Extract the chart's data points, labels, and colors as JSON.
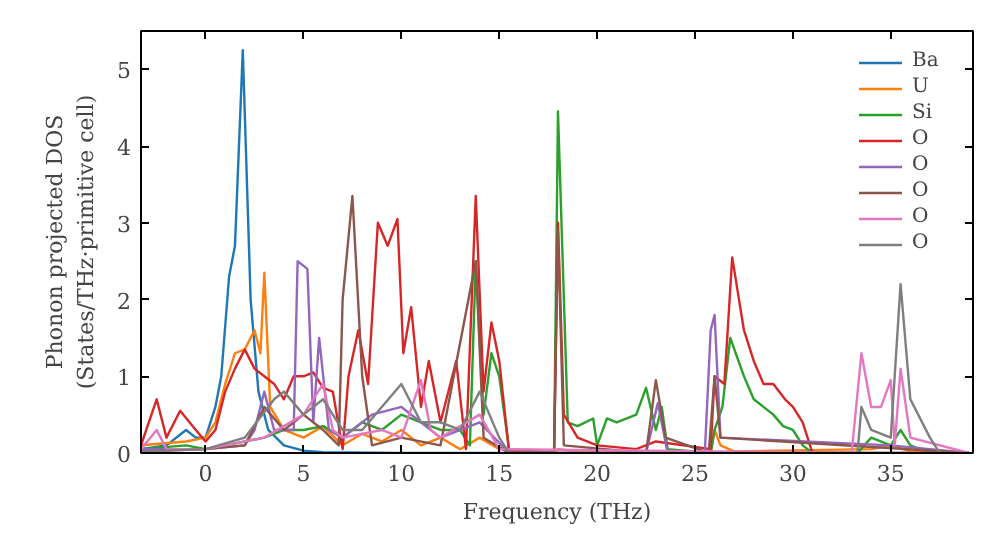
{
  "chart_data": {
    "type": "line",
    "xlabel": "Frequency (THz)",
    "ylabel": "Phonon projected DOS\n(States/THz·primitive cell)",
    "xlim": [
      -3.3,
      39.2
    ],
    "ylim": [
      0,
      5.5
    ],
    "xticks": [
      0,
      5,
      10,
      15,
      20,
      25,
      30,
      35
    ],
    "yticks": [
      0,
      1,
      2,
      3,
      4,
      5
    ],
    "legend": "top right",
    "grid": false,
    "series": [
      {
        "name": "Ba",
        "color": "#1f77b4",
        "x": [
          -3.3,
          -2,
          -1,
          -0.5,
          0,
          0.5,
          0.8,
          1.2,
          1.5,
          1.9,
          2.3,
          2.7,
          3.2,
          4,
          5,
          6,
          10,
          15,
          20,
          30,
          39
        ],
        "values": [
          0.05,
          0.1,
          0.3,
          0.2,
          0.2,
          0.6,
          1.0,
          2.3,
          2.7,
          5.25,
          2.0,
          0.8,
          0.3,
          0.1,
          0.03,
          0.01,
          0,
          0,
          0,
          0,
          0
        ]
      },
      {
        "name": "U",
        "color": "#ff7f0e",
        "x": [
          -3.3,
          -1,
          0,
          0.5,
          1,
          1.5,
          2,
          2.5,
          2.8,
          3,
          3.3,
          4,
          5,
          6,
          7,
          8,
          9,
          10,
          11,
          12,
          13,
          14,
          15,
          17.8,
          18,
          19,
          25.8,
          26,
          26.3,
          27,
          34,
          35,
          36,
          39
        ],
        "values": [
          0.1,
          0.15,
          0.2,
          0.4,
          0.9,
          1.3,
          1.35,
          1.6,
          1.3,
          2.35,
          0.6,
          0.3,
          0.2,
          0.35,
          0.1,
          0.25,
          0.15,
          0.3,
          0.1,
          0.2,
          0.05,
          0.2,
          0.05,
          0,
          0.05,
          0.02,
          0,
          0.3,
          0.1,
          0.02,
          0.05,
          0.1,
          0.02,
          0
        ]
      },
      {
        "name": "Si",
        "color": "#2ca02c",
        "x": [
          -3.3,
          -1,
          0,
          1,
          2,
          3,
          4,
          5,
          6,
          7,
          8,
          9,
          10,
          11,
          12,
          13,
          13.5,
          13.8,
          14.2,
          14.6,
          15,
          15.5,
          17.8,
          18,
          18.5,
          19,
          19.8,
          20,
          20.5,
          21,
          22,
          22.5,
          23,
          23.3,
          23.6,
          25.8,
          26,
          26.4,
          26.8,
          27.5,
          28,
          29,
          29.5,
          30,
          30.5,
          31,
          33.3,
          34,
          35,
          35.5,
          36,
          37,
          39
        ],
        "values": [
          0.05,
          0.1,
          0.05,
          0.1,
          0.15,
          0.2,
          0.3,
          0.3,
          0.35,
          0.2,
          0.4,
          0.3,
          0.5,
          0.4,
          0.3,
          0.3,
          0.1,
          2.5,
          0.5,
          1.3,
          1.0,
          0.05,
          0,
          4.45,
          0.4,
          0.35,
          0.45,
          0.1,
          0.45,
          0.4,
          0.5,
          0.85,
          0.3,
          0.6,
          0.05,
          0,
          0.3,
          0.6,
          1.5,
          1.0,
          0.7,
          0.5,
          0.35,
          0.3,
          0.1,
          0,
          0,
          0.2,
          0.1,
          0.3,
          0.1,
          0,
          0
        ]
      },
      {
        "name": "O",
        "color": "#d62728",
        "x": [
          -3.3,
          -2.5,
          -2,
          -1.3,
          -0.5,
          0,
          0.5,
          1,
          1.5,
          2,
          2.5,
          3,
          3.5,
          4,
          4.5,
          5,
          5.5,
          6,
          6.5,
          7,
          7.3,
          7.8,
          8.3,
          8.8,
          9.3,
          9.8,
          10.1,
          10.5,
          11,
          11.4,
          12,
          12.8,
          13.3,
          13.8,
          14.2,
          14.6,
          15,
          15.5,
          17.8,
          18,
          18.3,
          19,
          20,
          22,
          23,
          25.8,
          26,
          26.5,
          26.9,
          27.5,
          28,
          28.5,
          29,
          29.6,
          30,
          30.5,
          31,
          39
        ],
        "values": [
          0.1,
          0.7,
          0.2,
          0.55,
          0.3,
          0.15,
          0.3,
          0.8,
          1.1,
          1.35,
          1.1,
          1.0,
          0.9,
          0.7,
          1.0,
          1.0,
          1.05,
          0.85,
          0.8,
          0.05,
          1.0,
          1.6,
          0.9,
          3.0,
          2.7,
          3.05,
          1.3,
          1.9,
          0.6,
          1.2,
          0.4,
          1.2,
          0.05,
          3.35,
          0.8,
          1.7,
          1.2,
          0.02,
          0,
          3.0,
          0.5,
          0.2,
          0.1,
          0.05,
          0.15,
          0.05,
          1.0,
          0.9,
          2.55,
          1.6,
          1.2,
          0.9,
          0.9,
          0.7,
          0.6,
          0.4,
          0,
          0
        ]
      },
      {
        "name": "O",
        "color": "#9467bd",
        "x": [
          -3.3,
          0,
          2,
          2.5,
          3,
          3.5,
          4.5,
          4.7,
          5.2,
          5.5,
          5.8,
          6.3,
          7,
          8.5,
          10,
          12,
          14,
          15.5,
          22.5,
          23.1,
          23.6,
          25.5,
          25.8,
          26,
          26.3,
          35,
          39
        ],
        "values": [
          0.05,
          0.05,
          0.1,
          0.3,
          0.8,
          0.3,
          0.3,
          2.5,
          2.4,
          0.4,
          1.5,
          0.3,
          0.2,
          0.5,
          0.6,
          0.2,
          0.4,
          0,
          0,
          0.65,
          0,
          0,
          1.6,
          1.8,
          0.2,
          0.1,
          0
        ]
      },
      {
        "name": "O",
        "color": "#8c564b",
        "x": [
          -3.3,
          0,
          2,
          3,
          4,
          5,
          6,
          6.8,
          7,
          7.5,
          8,
          8.5,
          10,
          12,
          13.8,
          14.2,
          15.5,
          17.8,
          18,
          18.3,
          22.5,
          23,
          23.5,
          25.7,
          26,
          26.3,
          39
        ],
        "values": [
          0.02,
          0.05,
          0.1,
          0.6,
          0.3,
          0.5,
          0.3,
          0.1,
          2.0,
          3.35,
          1.0,
          0.1,
          0.2,
          0.1,
          2.5,
          0.2,
          0,
          0,
          2.9,
          0.1,
          0,
          0.95,
          0.2,
          0,
          1.0,
          0.2,
          0
        ]
      },
      {
        "name": "O",
        "color": "#e377c2",
        "x": [
          -3.3,
          -2.5,
          -2,
          0,
          3,
          5,
          6,
          6.5,
          7,
          9,
          10,
          11,
          11.5,
          12,
          14,
          15,
          33,
          33.5,
          34,
          34.5,
          35,
          35.2,
          35.5,
          36,
          39
        ],
        "values": [
          0.05,
          0.3,
          0.05,
          0.05,
          0.2,
          0.5,
          0.9,
          0.3,
          0.2,
          0.3,
          0.2,
          0.95,
          0.3,
          0.2,
          0.5,
          0.05,
          0,
          1.3,
          0.6,
          0.6,
          0.95,
          0.1,
          1.1,
          0.2,
          0
        ]
      },
      {
        "name": "O",
        "color": "#7f7f7f",
        "x": [
          -3.3,
          0,
          2,
          3.5,
          4,
          5,
          6,
          7,
          8,
          10,
          11,
          12,
          13,
          14,
          15,
          15.5,
          33.3,
          33.5,
          34,
          35,
          35.5,
          36,
          37,
          37.5,
          39
        ],
        "values": [
          0.02,
          0.05,
          0.2,
          0.7,
          0.8,
          0.5,
          0.7,
          0.3,
          0.3,
          0.9,
          0.4,
          0.4,
          0.3,
          0.8,
          0.2,
          0,
          0,
          0.6,
          0.3,
          0.2,
          2.2,
          0.7,
          0.2,
          0,
          0
        ]
      }
    ]
  }
}
